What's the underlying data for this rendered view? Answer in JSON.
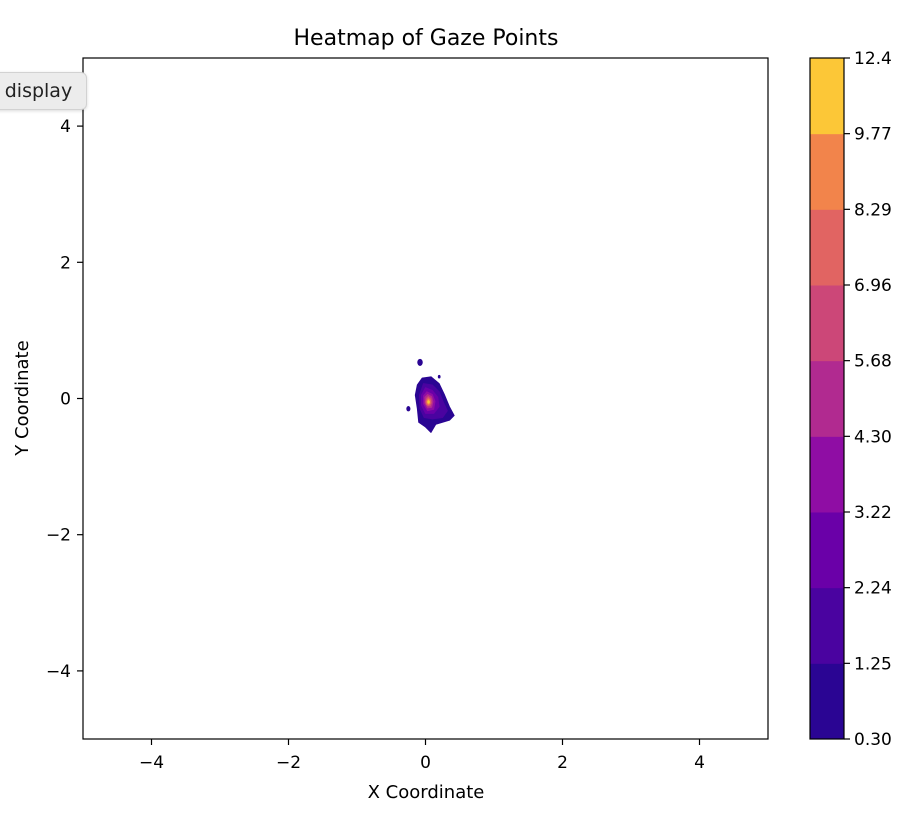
{
  "chart_data": {
    "type": "heatmap",
    "title": "Heatmap of Gaze Points",
    "xlabel": "X Coordinate",
    "ylabel": "Y Coordinate",
    "xlim": [
      -5,
      5
    ],
    "ylim": [
      -5,
      5
    ],
    "xticks": [
      -4,
      -2,
      0,
      2,
      4
    ],
    "xtick_labels": [
      "−4",
      "−2",
      "0",
      "2",
      "4"
    ],
    "yticks": [
      4,
      2,
      0,
      -2,
      -4
    ],
    "ytick_labels": [
      "4",
      "2",
      "0",
      "−2",
      "−4"
    ],
    "colormap": "plasma",
    "grid": false,
    "levels": [
      0.3,
      1.25,
      2.24,
      3.22,
      4.3,
      5.68,
      6.96,
      8.29,
      9.77,
      12.4
    ],
    "level_labels": [
      "0.30",
      "1.25",
      "2.24",
      "3.22",
      "4.30",
      "5.68",
      "6.96",
      "8.29",
      "9.77",
      "12.4"
    ],
    "level_colors": [
      "#2a0593",
      "#4a03a0",
      "#6a00a8",
      "#8f0da4",
      "#b12a90",
      "#cc4778",
      "#e16462",
      "#f2844b",
      "#fcc737"
    ],
    "center": [
      0.05,
      -0.05
    ],
    "peak_value": 12.4,
    "contours": [
      {
        "level": 0.3,
        "points": [
          [
            -0.05,
            0.3
          ],
          [
            0.08,
            0.32
          ],
          [
            0.2,
            0.22
          ],
          [
            0.28,
            0.05
          ],
          [
            0.35,
            -0.12
          ],
          [
            0.42,
            -0.25
          ],
          [
            0.35,
            -0.32
          ],
          [
            0.15,
            -0.38
          ],
          [
            0.08,
            -0.5
          ],
          [
            0.0,
            -0.42
          ],
          [
            -0.1,
            -0.35
          ],
          [
            -0.12,
            -0.15
          ],
          [
            -0.15,
            0.05
          ],
          [
            -0.12,
            0.2
          ]
        ]
      },
      {
        "level": 1.25,
        "points": [
          [
            -0.03,
            0.22
          ],
          [
            0.1,
            0.2
          ],
          [
            0.2,
            0.1
          ],
          [
            0.26,
            -0.05
          ],
          [
            0.32,
            -0.18
          ],
          [
            0.25,
            -0.28
          ],
          [
            0.1,
            -0.3
          ],
          [
            -0.02,
            -0.28
          ],
          [
            -0.08,
            -0.15
          ],
          [
            -0.09,
            0.05
          ]
        ]
      },
      {
        "level": 2.24,
        "points": [
          [
            0.0,
            0.16
          ],
          [
            0.1,
            0.12
          ],
          [
            0.18,
            0.02
          ],
          [
            0.2,
            -0.12
          ],
          [
            0.12,
            -0.22
          ],
          [
            0.0,
            -0.22
          ],
          [
            -0.06,
            -0.1
          ],
          [
            -0.06,
            0.05
          ]
        ]
      },
      {
        "level": 3.22,
        "points": [
          [
            0.02,
            0.1
          ],
          [
            0.1,
            0.06
          ],
          [
            0.14,
            -0.04
          ],
          [
            0.12,
            -0.16
          ],
          [
            0.03,
            -0.18
          ],
          [
            -0.03,
            -0.08
          ],
          [
            -0.03,
            0.04
          ]
        ]
      },
      {
        "level": 4.3,
        "points": [
          [
            0.03,
            0.06
          ],
          [
            0.09,
            0.03
          ],
          [
            0.11,
            -0.05
          ],
          [
            0.09,
            -0.13
          ],
          [
            0.03,
            -0.14
          ],
          [
            -0.01,
            -0.07
          ],
          [
            -0.01,
            0.02
          ]
        ]
      },
      {
        "level": 5.68,
        "points": [
          [
            0.04,
            0.03
          ],
          [
            0.08,
            0.0
          ],
          [
            0.09,
            -0.06
          ],
          [
            0.07,
            -0.11
          ],
          [
            0.03,
            -0.11
          ],
          [
            0.0,
            -0.06
          ],
          [
            0.01,
            0.0
          ]
        ]
      },
      {
        "level": 6.96,
        "points": [
          [
            0.04,
            0.01
          ],
          [
            0.07,
            -0.02
          ],
          [
            0.07,
            -0.07
          ],
          [
            0.05,
            -0.1
          ],
          [
            0.02,
            -0.09
          ],
          [
            0.01,
            -0.04
          ]
        ]
      },
      {
        "level": 8.29,
        "points": [
          [
            0.045,
            -0.01
          ],
          [
            0.065,
            -0.03
          ],
          [
            0.065,
            -0.07
          ],
          [
            0.045,
            -0.085
          ],
          [
            0.025,
            -0.07
          ],
          [
            0.025,
            -0.03
          ]
        ]
      },
      {
        "level": 9.77,
        "points": [
          [
            0.045,
            -0.03
          ],
          [
            0.058,
            -0.045
          ],
          [
            0.055,
            -0.065
          ],
          [
            0.042,
            -0.07
          ],
          [
            0.032,
            -0.055
          ],
          [
            0.034,
            -0.04
          ]
        ]
      }
    ],
    "islands": [
      {
        "level": 0.3,
        "center": [
          -0.08,
          0.53
        ],
        "r": 0.04
      },
      {
        "level": 0.3,
        "center": [
          -0.25,
          -0.15
        ],
        "r": 0.03
      },
      {
        "level": 0.3,
        "center": [
          0.2,
          0.32
        ],
        "r": 0.02
      }
    ]
  },
  "tooltip": {
    "text": "e display"
  }
}
